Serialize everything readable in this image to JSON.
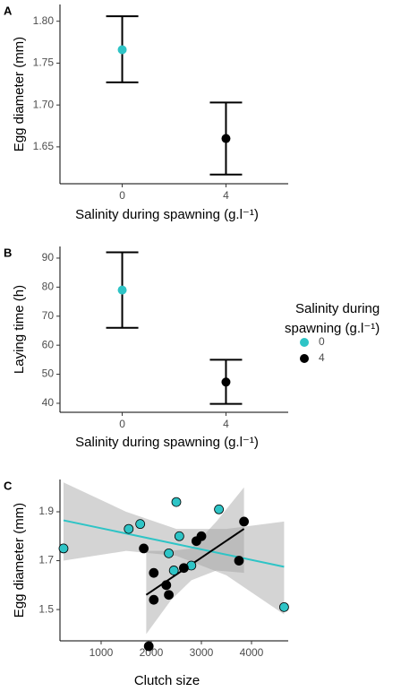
{
  "legend": {
    "title": "Salinity during spawning (g.l⁻¹)",
    "entries": [
      {
        "name": "0",
        "color": "#2ec4c6"
      },
      {
        "name": "4",
        "color": "#000000"
      }
    ]
  },
  "chart_data": [
    {
      "type": "errorbar",
      "panel_label": "A",
      "xlabel": "Salinity during spawning (g.l⁻¹)",
      "ylabel": "Egg diameter (mm)",
      "categories": [
        "0",
        "4"
      ],
      "values": [
        1.766,
        1.66
      ],
      "lower": [
        1.727,
        1.617
      ],
      "upper": [
        1.806,
        1.703
      ],
      "colors": [
        "#2ec4c6",
        "#000000"
      ],
      "ylim": [
        1.606,
        1.82
      ],
      "yticks": [
        1.65,
        {
          "value": 1.7,
          "label": "1.70"
        },
        1.75,
        {
          "value": 1.8,
          "label": "1.80"
        }
      ]
    },
    {
      "type": "errorbar",
      "panel_label": "B",
      "xlabel": "Salinity during spawning (g.l⁻¹)",
      "ylabel": "Laying time (h)",
      "categories": [
        "0",
        "4"
      ],
      "values": [
        79,
        47.3
      ],
      "lower": [
        66,
        39.8
      ],
      "upper": [
        92,
        55
      ],
      "colors": [
        "#2ec4c6",
        "#000000"
      ],
      "ylim": [
        36.9,
        94
      ],
      "yticks": [
        40,
        50,
        60,
        70,
        80,
        90
      ]
    },
    {
      "type": "scatter",
      "panel_label": "C",
      "xlabel": "Clutch size",
      "ylabel": "Egg diameter (mm)",
      "xlim": [
        179,
        4732
      ],
      "xticks": [
        1000,
        2000,
        3000,
        4000
      ],
      "ylim": [
        1.372,
        2.032
      ],
      "yticks": [
        1.5,
        1.7,
        1.9
      ],
      "series": [
        {
          "name": "0",
          "color": "#2ec4c6",
          "x": [
            250,
            1550,
            1780,
            2350,
            2500,
            2560,
            2450,
            2800,
            3350,
            4650
          ],
          "values": [
            1.75,
            1.83,
            1.85,
            1.73,
            1.94,
            1.8,
            1.66,
            1.68,
            1.91,
            1.51
          ],
          "fit_x": [
            250,
            4650
          ],
          "fit_y": [
            1.865,
            1.675
          ],
          "ci_x": [
            250,
            1500,
            2500,
            3500,
            4650
          ],
          "ci_lower": [
            1.7,
            1.74,
            1.72,
            1.64,
            1.48
          ],
          "ci_upper": [
            2.02,
            1.9,
            1.83,
            1.83,
            1.86
          ]
        },
        {
          "name": "4",
          "color": "#000000",
          "x": [
            1950,
            1850,
            2050,
            2050,
            2300,
            2350,
            2650,
            2900,
            3000,
            3750,
            3850
          ],
          "values": [
            1.35,
            1.75,
            1.65,
            1.54,
            1.6,
            1.56,
            1.67,
            1.78,
            1.8,
            1.7,
            1.86
          ],
          "fit_x": [
            1900,
            3850
          ],
          "fit_y": [
            1.56,
            1.83
          ],
          "ci_x": [
            1900,
            2400,
            2800,
            3300,
            3850
          ],
          "ci_lower": [
            1.4,
            1.54,
            1.62,
            1.66,
            1.65
          ],
          "ci_upper": [
            1.74,
            1.74,
            1.75,
            1.86,
            2.0
          ]
        }
      ]
    }
  ]
}
